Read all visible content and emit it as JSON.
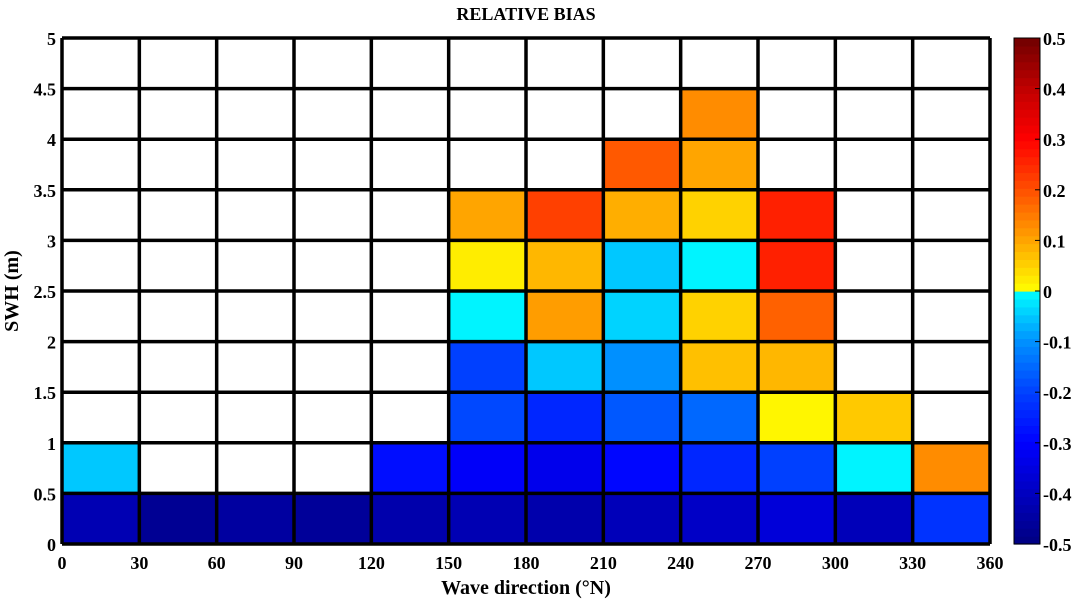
{
  "chart_data": {
    "type": "heatmap",
    "title": "RELATIVE BIAS",
    "xlabel": "Wave direction (°N)",
    "ylabel": "SWH (m)",
    "x_edges": [
      0,
      30,
      60,
      90,
      120,
      150,
      180,
      210,
      240,
      270,
      300,
      330,
      360
    ],
    "y_edges": [
      0,
      0.5,
      1,
      1.5,
      2,
      2.5,
      3,
      3.5,
      4,
      4.5,
      5
    ],
    "x_ticks": [
      "0",
      "30",
      "60",
      "90",
      "120",
      "150",
      "180",
      "210",
      "240",
      "270",
      "300",
      "330",
      "360"
    ],
    "y_ticks": [
      "0",
      "0.5",
      "1",
      "1.5",
      "2",
      "2.5",
      "3",
      "3.5",
      "4",
      "4.5",
      "5"
    ],
    "xlim": [
      0,
      360
    ],
    "ylim": [
      0,
      5
    ],
    "grid": true,
    "colorbar": {
      "range": [
        -0.5,
        0.5
      ],
      "ticks": [
        "-0.5",
        "-0.4",
        "-0.3",
        "-0.2",
        "-0.1",
        "0",
        "0.1",
        "0.2",
        "0.3",
        "0.4",
        "0.5"
      ],
      "placement": "right",
      "colormap": "jet (no green: blue to cyan below 0, yellow to dark red above 0)"
    },
    "values_by_swh_row_from_bottom": [
      [
        -0.42,
        -0.47,
        -0.45,
        -0.46,
        -0.43,
        -0.42,
        -0.43,
        -0.41,
        -0.39,
        -0.36,
        -0.41,
        -0.22
      ],
      [
        -0.05,
        null,
        null,
        null,
        -0.28,
        -0.31,
        -0.33,
        -0.29,
        -0.24,
        -0.2,
        -0.01,
        0.13
      ],
      [
        null,
        null,
        null,
        null,
        null,
        -0.19,
        -0.24,
        -0.17,
        -0.15,
        0.01,
        0.06,
        null
      ],
      [
        null,
        null,
        null,
        null,
        null,
        -0.2,
        -0.05,
        -0.1,
        0.07,
        0.08,
        null,
        null
      ],
      [
        null,
        null,
        null,
        null,
        null,
        -0.01,
        0.11,
        -0.04,
        0.05,
        0.18,
        null,
        null
      ],
      [
        null,
        null,
        null,
        null,
        null,
        0.02,
        0.08,
        -0.05,
        -0.01,
        0.26,
        null,
        null
      ],
      [
        null,
        null,
        null,
        null,
        null,
        0.1,
        0.22,
        0.09,
        0.05,
        0.26,
        null,
        null
      ],
      [
        null,
        null,
        null,
        null,
        null,
        null,
        null,
        0.19,
        0.1,
        null,
        null,
        null
      ],
      [
        null,
        null,
        null,
        null,
        null,
        null,
        null,
        null,
        0.13,
        null,
        null,
        null
      ],
      [
        null,
        null,
        null,
        null,
        null,
        null,
        null,
        null,
        null,
        null,
        null,
        null
      ]
    ]
  }
}
